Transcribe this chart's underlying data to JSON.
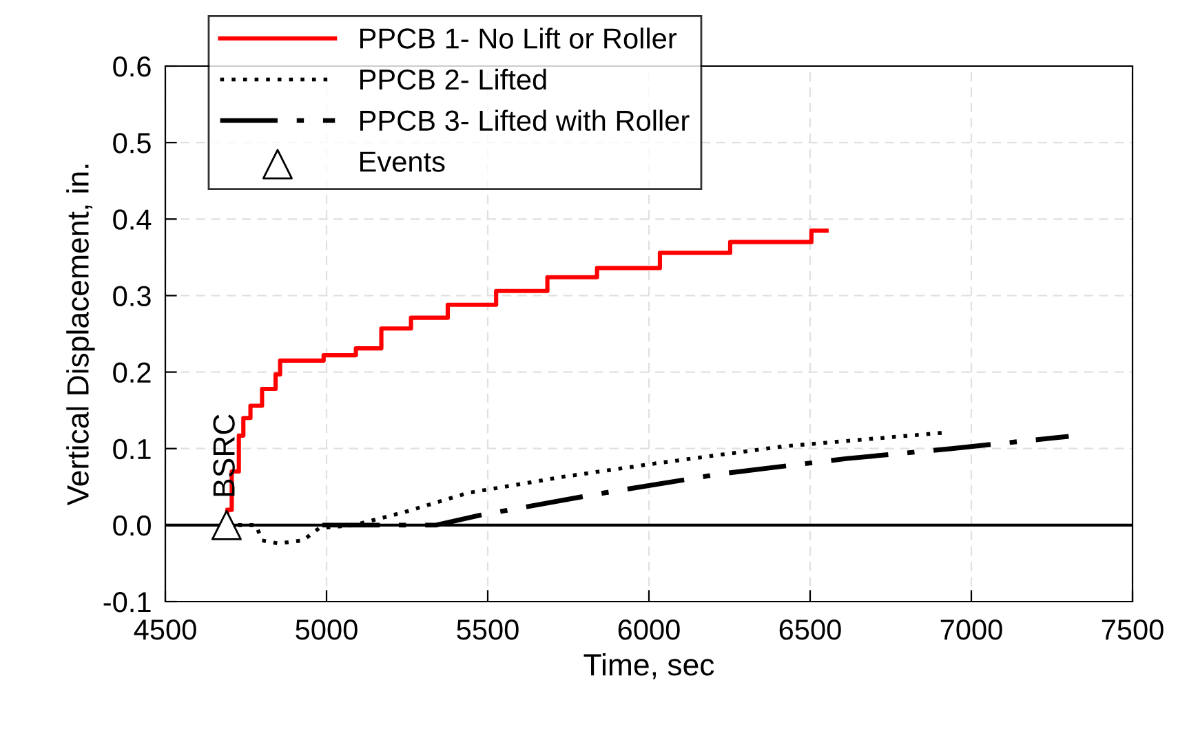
{
  "chart_data": {
    "type": "line",
    "xlabel": "Time, sec",
    "ylabel": "Vertical Displacement, in.",
    "xlim": [
      4500,
      7500
    ],
    "xticks": [
      4500,
      5000,
      5500,
      6000,
      6500,
      7000,
      7500
    ],
    "ylim": [
      -0.1,
      0.6
    ],
    "yticks": [
      -0.1,
      {
        "value": 0.0,
        "label": "0.0"
      },
      0.1,
      0.2,
      0.3,
      0.4,
      0.5,
      0.6
    ],
    "grid": true,
    "legend": "top left",
    "series": [
      {
        "name": "PPCB 1- No Lift or Roller",
        "type": "step",
        "color": "#ff0000",
        "line_style": "solid",
        "x": [
          4690,
          4692,
          4706,
          4728,
          4742,
          4764,
          4800,
          4842,
          4856,
          4991,
          5091,
          5170,
          5262,
          5376,
          5526,
          5685,
          5839,
          6034,
          6252,
          6504,
          6551
        ],
        "values": [
          0.0,
          0.02,
          0.07,
          0.117,
          0.14,
          0.156,
          0.178,
          0.197,
          0.215,
          0.222,
          0.231,
          0.257,
          0.271,
          0.288,
          0.306,
          0.324,
          0.336,
          0.356,
          0.37,
          0.385,
          0.385
        ]
      },
      {
        "name": "PPCB 2- Lifted",
        "color": "#000000",
        "line_style": "dotted",
        "x": [
          4690,
          4781,
          4800,
          4850,
          4927,
          4977,
          5085,
          5242,
          5438,
          5732,
          6027,
          6419,
          6920
        ],
        "values": [
          0.0,
          0.0,
          -0.02,
          -0.024,
          -0.02,
          -0.004,
          0.0,
          0.017,
          0.042,
          0.063,
          0.081,
          0.103,
          0.121
        ]
      },
      {
        "name": "PPCB 3- Lifted with Roller",
        "color": "#000000",
        "line_style": "dashdot",
        "x": [
          4987,
          5340,
          5477,
          5831,
          6223,
          6615,
          6939,
          7302
        ],
        "values": [
          0.0,
          0.0,
          0.013,
          0.04,
          0.067,
          0.087,
          0.1,
          0.116
        ]
      },
      {
        "name": "Events",
        "type": "scatter",
        "color": "#000000",
        "marker": "triangle",
        "x": [
          4690
        ],
        "values": [
          0.0
        ]
      }
    ],
    "annotations": [
      {
        "text": "BSRC",
        "x": 4690,
        "y": 0.0
      }
    ]
  }
}
